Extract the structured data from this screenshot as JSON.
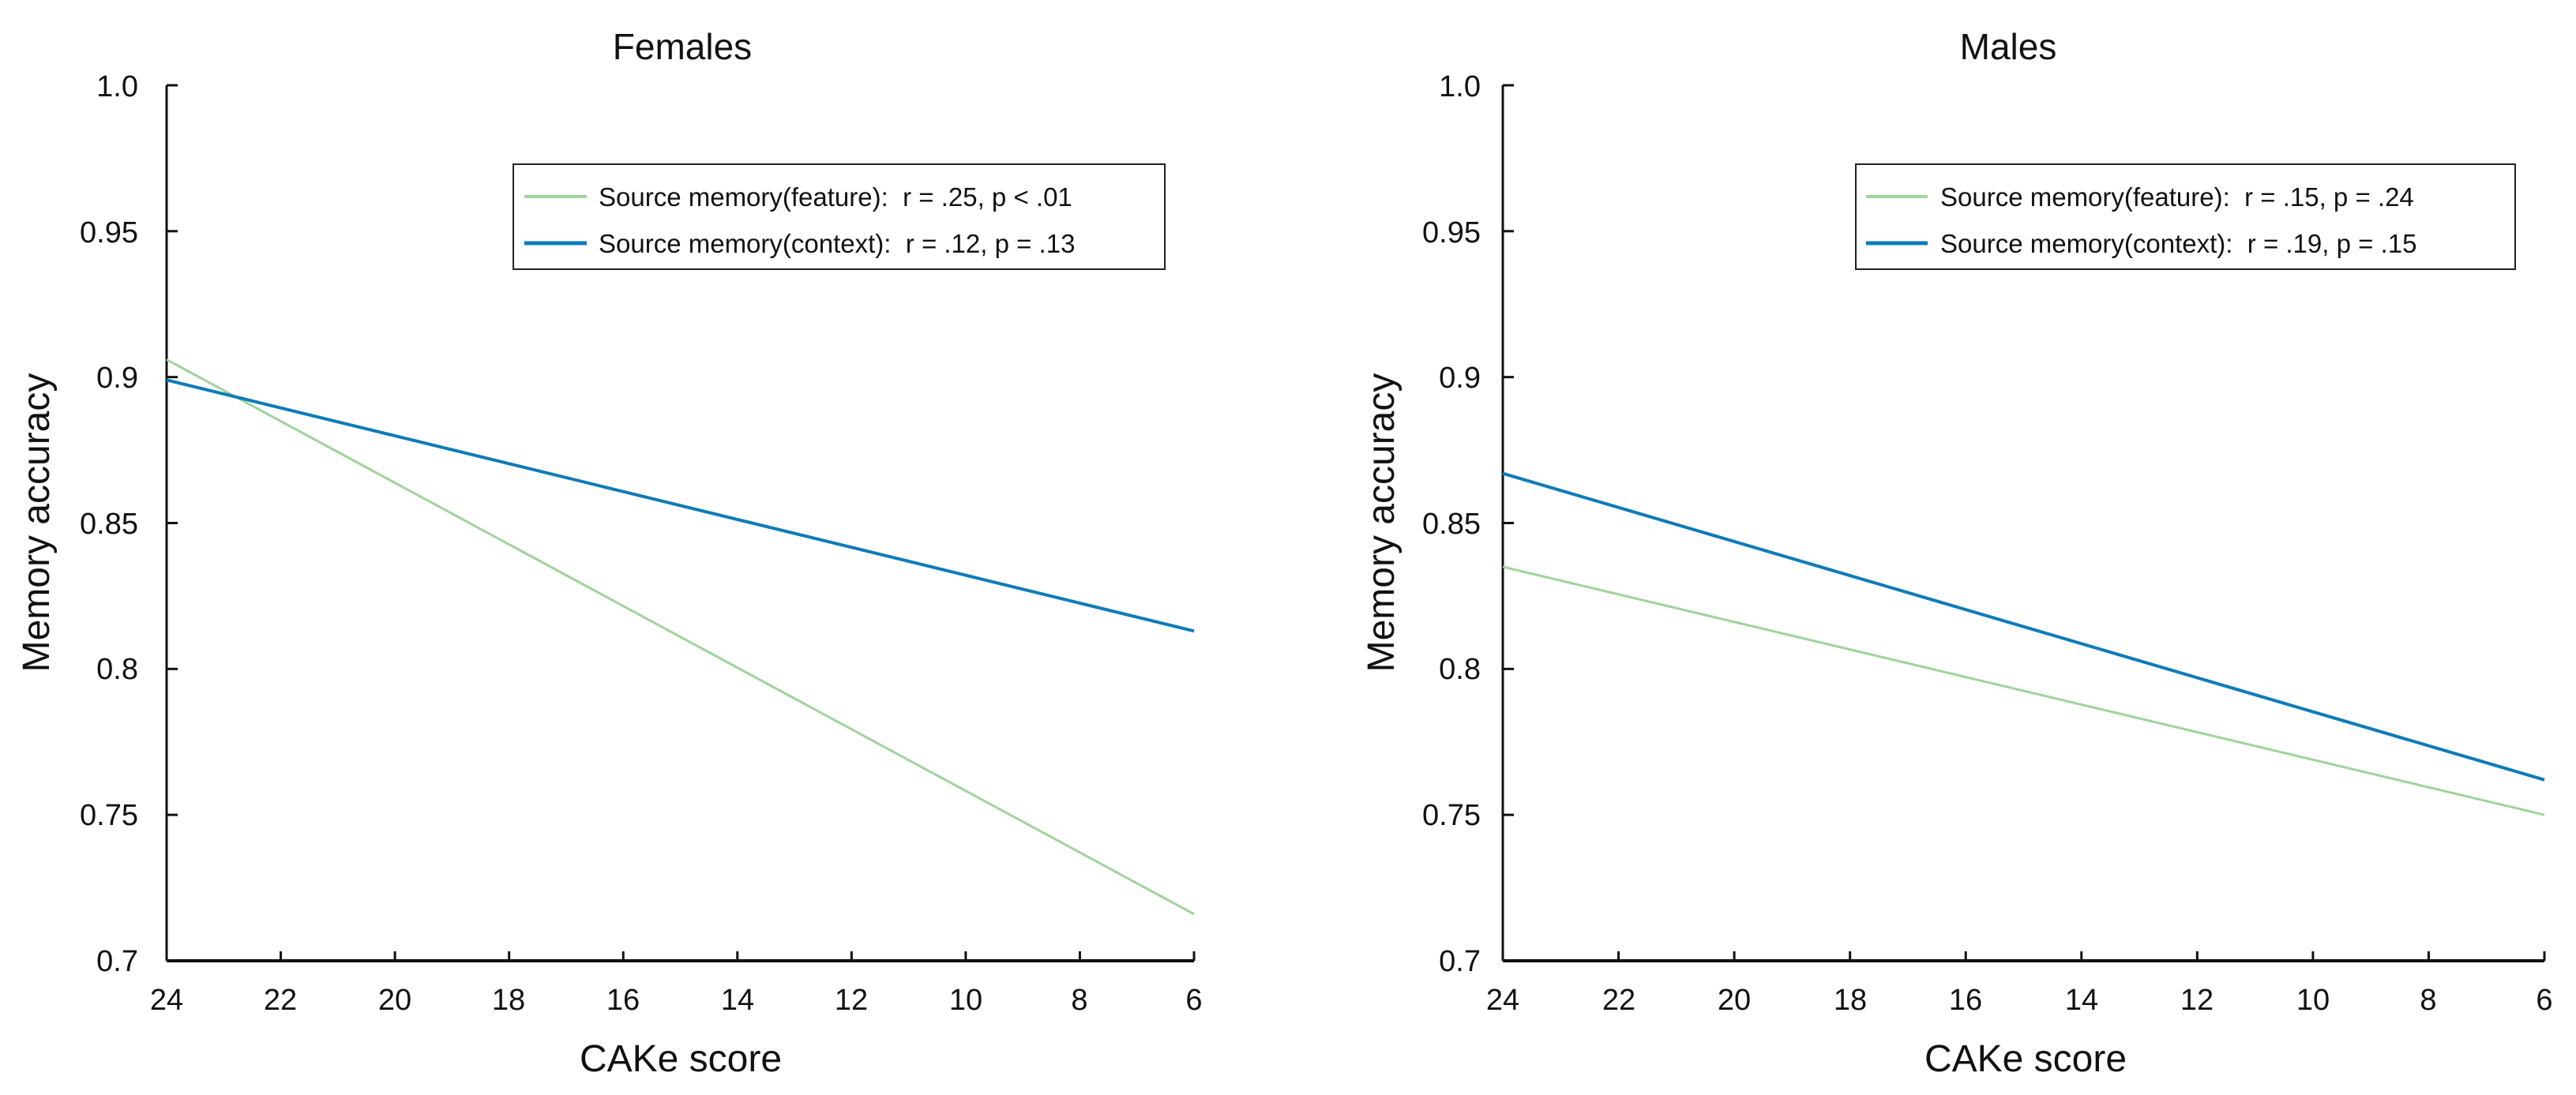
{
  "chart_data": [
    {
      "type": "line",
      "title": "Females",
      "xlabel": "CAKe score",
      "ylabel": "Memory accuracy",
      "xlim": [
        24,
        6
      ],
      "ylim": [
        0.7,
        1.0
      ],
      "x_reversed": true,
      "x_ticks": [
        24,
        22,
        20,
        18,
        16,
        14,
        12,
        10,
        8,
        6
      ],
      "y_ticks": [
        0.7,
        0.75,
        0.8,
        0.85,
        0.9,
        0.95,
        1.0
      ],
      "y_tick_labels": [
        "0.7",
        "0.75",
        "0.8",
        "0.85",
        "0.9",
        "0.95",
        "1.0"
      ],
      "legend_position": "top-right",
      "series": [
        {
          "name": "Source memory(feature):  r = .25, p < .01",
          "color": "#9fd49a",
          "x": [
            24,
            6
          ],
          "y": [
            0.906,
            0.716
          ]
        },
        {
          "name": "Source memory(context):  r = .12, p = .13",
          "color": "#0e7bb8",
          "x": [
            24,
            6
          ],
          "y": [
            0.899,
            0.813
          ]
        }
      ]
    },
    {
      "type": "line",
      "title": "Males",
      "xlabel": "CAKe score",
      "ylabel": "Memory accuracy",
      "xlim": [
        24,
        6
      ],
      "ylim": [
        0.7,
        1.0
      ],
      "x_reversed": true,
      "x_ticks": [
        24,
        22,
        20,
        18,
        16,
        14,
        12,
        10,
        8,
        6
      ],
      "y_ticks": [
        0.7,
        0.75,
        0.8,
        0.85,
        0.9,
        0.95,
        1.0
      ],
      "y_tick_labels": [
        "0.7",
        "0.75",
        "0.8",
        "0.85",
        "0.9",
        "0.95",
        "1.0"
      ],
      "legend_position": "top-right",
      "series": [
        {
          "name": "Source memory(feature):  r = .15, p = .24",
          "color": "#9fd49a",
          "x": [
            24,
            6
          ],
          "y": [
            0.835,
            0.75
          ]
        },
        {
          "name": "Source memory(context):  r = .19, p = .15",
          "color": "#0e7bb8",
          "x": [
            24,
            6
          ],
          "y": [
            0.867,
            0.762
          ]
        }
      ]
    }
  ]
}
